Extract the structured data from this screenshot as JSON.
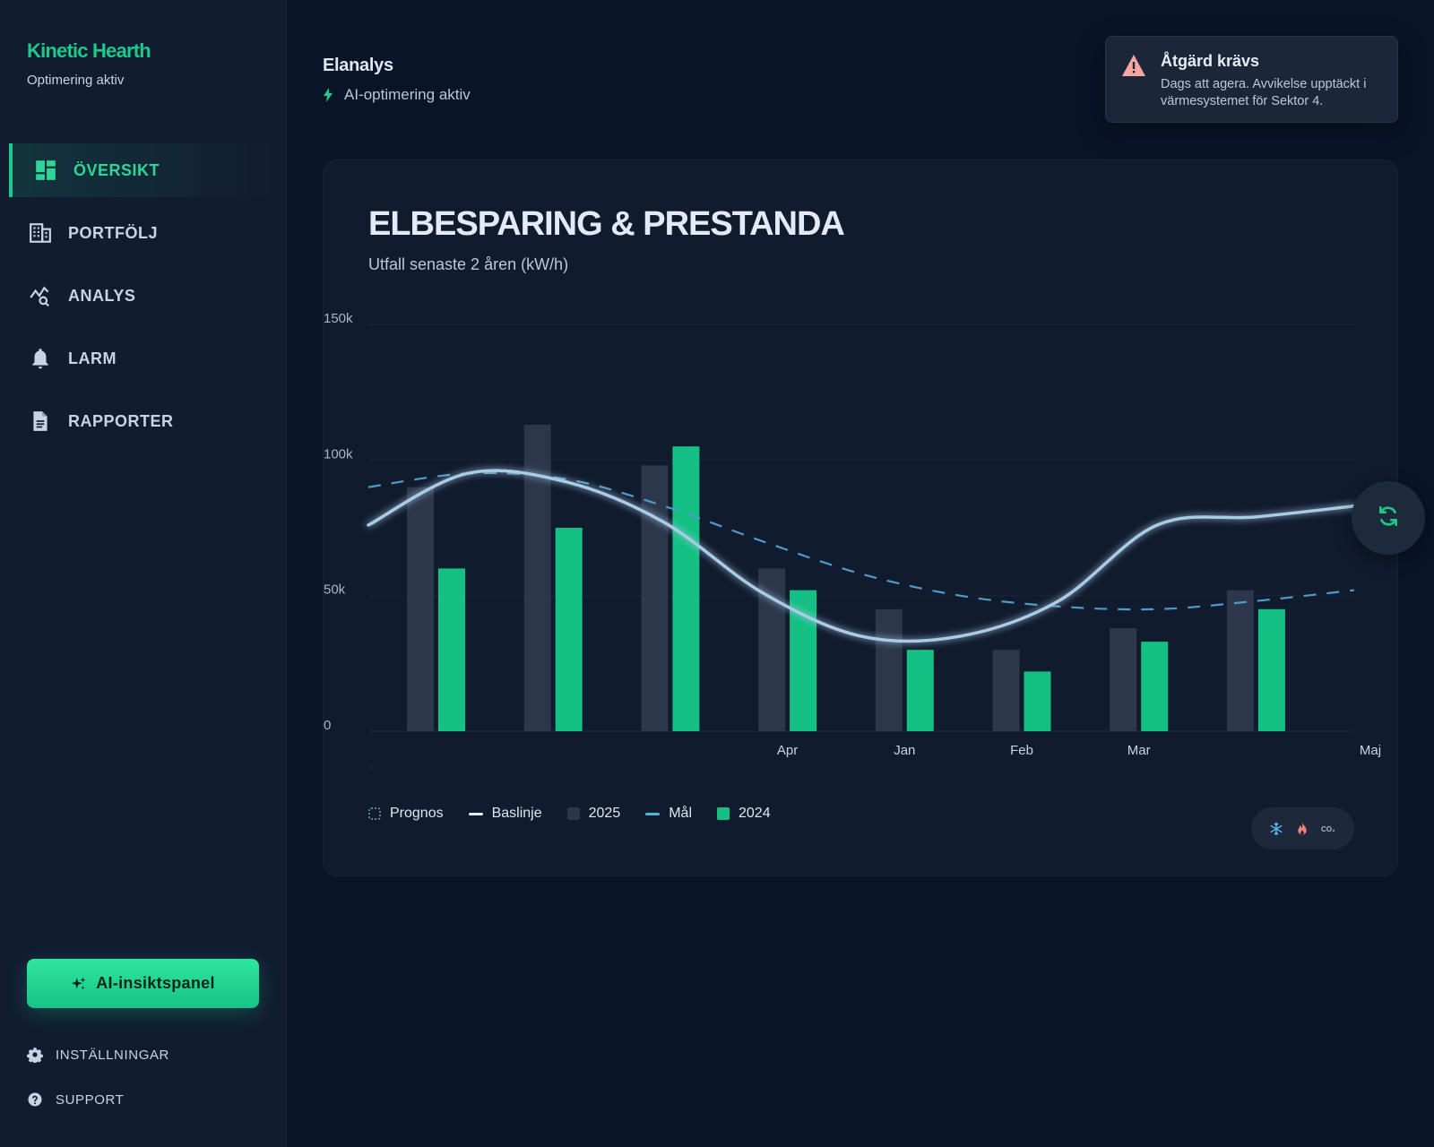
{
  "brand": {
    "title": "Kinetic Hearth",
    "subtitle": "Optimering aktiv"
  },
  "sidebar": {
    "items": [
      {
        "label": "ÖVERSIKT",
        "icon": "dashboard-icon",
        "active": true
      },
      {
        "label": "PORTFÖLJ",
        "icon": "building-icon",
        "active": false
      },
      {
        "label": "ANALYS",
        "icon": "analytics-icon",
        "active": false
      },
      {
        "label": "LARM",
        "icon": "bell-icon",
        "active": false
      },
      {
        "label": "RAPPORTER",
        "icon": "document-icon",
        "active": false
      }
    ],
    "ai_button": "AI-insiktspanel",
    "footer": [
      {
        "label": "INSTÄLLNINGAR",
        "icon": "gear-icon"
      },
      {
        "label": "SUPPORT",
        "icon": "help-icon"
      }
    ]
  },
  "header": {
    "title": "Elanalys",
    "status": "AI-optimering aktiv"
  },
  "alert": {
    "title": "Åtgärd krävs",
    "text": "Dags att agera. Avvikelse upptäckt i värmesystemet för Sektor 4.",
    "icon": "warning-icon"
  },
  "colors": {
    "accent": "#1fc98a",
    "bar_2025": "#2c374c",
    "bar_2024": "#14c084",
    "baseline": "#a9cbe6",
    "target": "#4f9ac9",
    "alert": "#f07a7a"
  },
  "chart_data": {
    "type": "bar",
    "title": "ELBESPARING & PRESTANDA",
    "subtitle": "Utfall senaste 2 åren (kW/h)",
    "ylim": [
      0,
      150000
    ],
    "y_ticks": [
      "150k",
      "100k",
      "50k",
      "0"
    ],
    "y_tick_values": [
      150000,
      100000,
      50000,
      0
    ],
    "x_labels": [
      "",
      "",
      "",
      "Apr",
      "Jan",
      "Feb",
      "Mar",
      "",
      "Maj"
    ],
    "series": [
      {
        "name": "2025",
        "kind": "bar",
        "values": [
          90000,
          113000,
          98000,
          60000,
          45000,
          30000,
          38000,
          52000
        ]
      },
      {
        "name": "2024",
        "kind": "bar",
        "values": [
          60000,
          75000,
          105000,
          52000,
          30000,
          22000,
          33000,
          45000
        ]
      },
      {
        "name": "Baslinje",
        "kind": "line",
        "values": [
          76000,
          95000,
          92000,
          77000,
          51000,
          35000,
          35000,
          48000,
          76000,
          79000,
          83000
        ]
      },
      {
        "name": "Mål",
        "kind": "line",
        "values": [
          90000,
          95000,
          93000,
          83000,
          70000,
          58000,
          50000,
          46000,
          45000,
          48000,
          52000
        ]
      }
    ],
    "legend": [
      {
        "name": "Prognos",
        "swatch": "dashed-box"
      },
      {
        "name": "Baslinje",
        "swatch": "line"
      },
      {
        "name": "2025",
        "swatch": "square"
      },
      {
        "name": "Mål",
        "swatch": "line"
      },
      {
        "name": "2024",
        "swatch": "square"
      }
    ],
    "grid": true,
    "legend_placement": "bottom-left"
  },
  "chart_controls": [
    {
      "icon": "snowflake-icon"
    },
    {
      "icon": "flame-icon"
    },
    {
      "icon": "co2-icon",
      "label": "CO₂"
    }
  ],
  "refresh": {
    "icon": "refresh-icon"
  }
}
